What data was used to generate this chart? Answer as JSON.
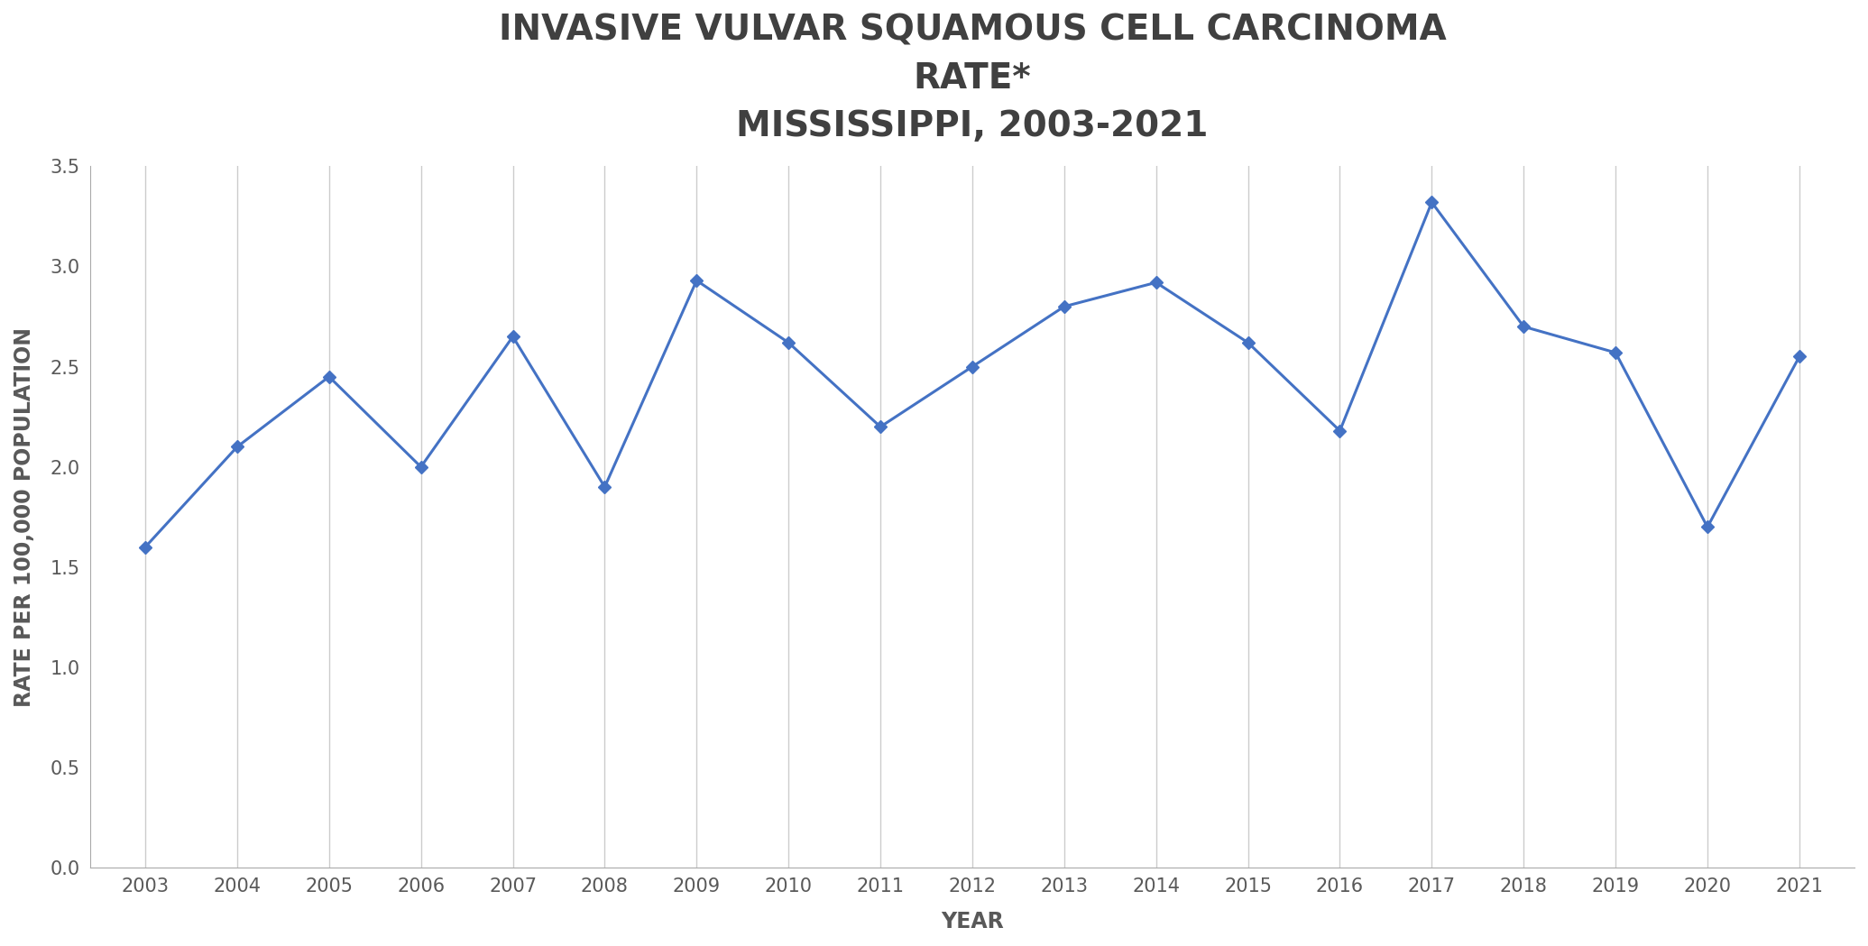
{
  "title_line1": "INVASIVE VULVAR SQUAMOUS CELL CARCINOMA",
  "title_line2": "RATE*",
  "title_line3": "MISSISSIPPI, 2003-2021",
  "xlabel": "YEAR",
  "ylabel": "RATE PER 100,000 POPULATION",
  "years": [
    2003,
    2004,
    2005,
    2006,
    2007,
    2008,
    2009,
    2010,
    2011,
    2012,
    2013,
    2014,
    2015,
    2016,
    2017,
    2018,
    2019,
    2020,
    2021
  ],
  "values": [
    1.6,
    2.1,
    2.45,
    2.0,
    2.65,
    1.9,
    2.93,
    2.62,
    2.2,
    2.5,
    2.8,
    2.92,
    2.62,
    2.18,
    3.32,
    2.7,
    2.57,
    1.7,
    2.55
  ],
  "line_color": "#4472C4",
  "marker": "D",
  "marker_size": 7,
  "line_width": 2.2,
  "ylim": [
    0.0,
    3.5
  ],
  "yticks": [
    0.0,
    0.5,
    1.0,
    1.5,
    2.0,
    2.5,
    3.0,
    3.5
  ],
  "grid_color": "#CCCCCC",
  "plot_bg_color": "#FFFFFF",
  "fig_bg_color": "#FFFFFF",
  "title_fontsize": 28,
  "axis_label_fontsize": 17,
  "tick_fontsize": 15,
  "title_color": "#404040",
  "tick_color": "#595959",
  "label_color": "#595959"
}
